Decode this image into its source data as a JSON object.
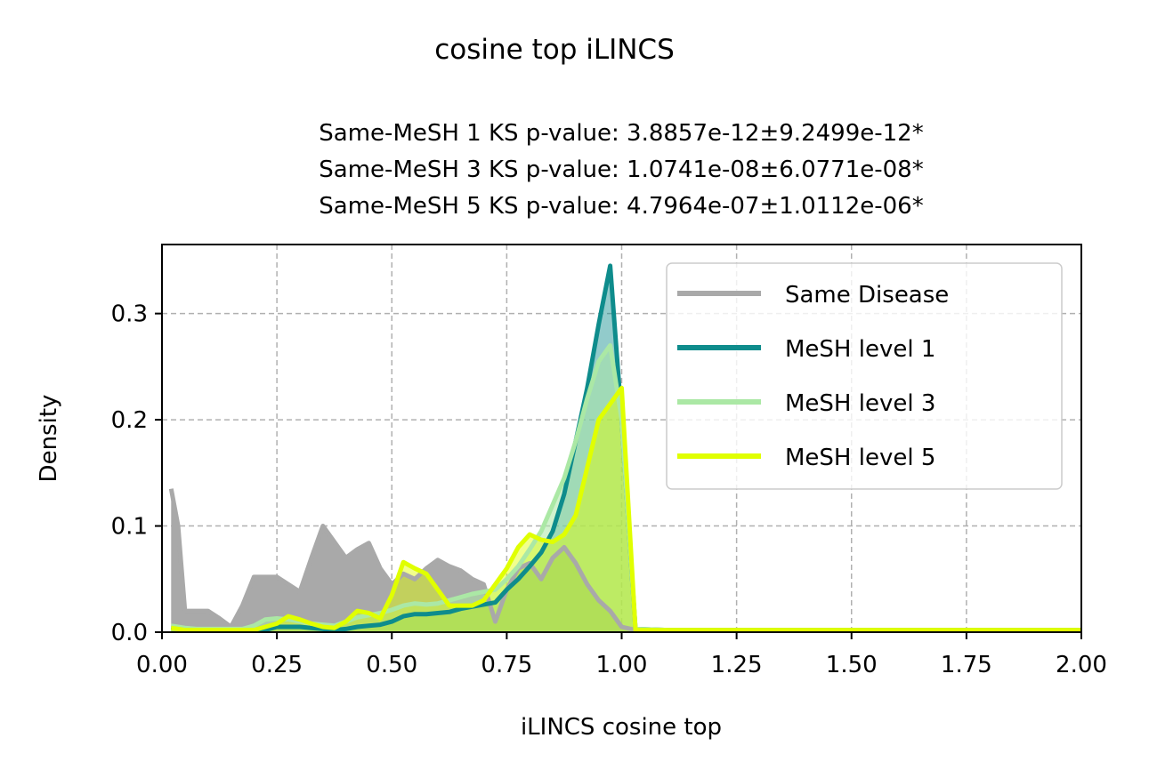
{
  "chart_data": {
    "type": "area",
    "suptitle": "cosine top iLINCS",
    "title_lines": [
      "Same-MeSH 1 KS p-value: 3.8857e-12±9.2499e-12*",
      "Same-MeSH 3 KS p-value: 1.0741e-08±6.0771e-08*",
      "Same-MeSH 5 KS p-value: 4.7964e-07±1.0112e-06*"
    ],
    "xlabel": "iLINCS cosine top",
    "ylabel": "Density",
    "xlim": [
      0,
      2
    ],
    "ylim": [
      0,
      0.365
    ],
    "xticks": [
      0,
      0.25,
      0.5,
      0.75,
      1.0,
      1.25,
      1.5,
      1.75,
      2.0
    ],
    "xtick_labels": [
      "0.00",
      "0.25",
      "0.50",
      "0.75",
      "1.00",
      "1.25",
      "1.50",
      "1.75",
      "2.00"
    ],
    "yticks": [
      0,
      0.1,
      0.2,
      0.3
    ],
    "ytick_labels": [
      "0.0",
      "0.1",
      "0.2",
      "0.3"
    ],
    "grid": true,
    "legend_position": "top-right",
    "x": [
      0.02,
      0.035,
      0.05,
      0.075,
      0.1,
      0.125,
      0.15,
      0.175,
      0.2,
      0.225,
      0.25,
      0.275,
      0.3,
      0.325,
      0.35,
      0.375,
      0.4,
      0.425,
      0.45,
      0.475,
      0.5,
      0.525,
      0.55,
      0.575,
      0.6,
      0.625,
      0.65,
      0.675,
      0.7,
      0.725,
      0.75,
      0.775,
      0.8,
      0.825,
      0.85,
      0.875,
      0.9,
      0.925,
      0.95,
      0.975,
      1.0,
      1.03,
      1.1,
      1.25,
      1.5,
      1.75,
      2.0
    ],
    "series": [
      {
        "name": "Same Disease",
        "color": "#a9a9a9",
        "values": [
          0.135,
          0.1,
          0.02,
          0.02,
          0.02,
          0.013,
          0.005,
          0.025,
          0.052,
          0.052,
          0.052,
          0.045,
          0.038,
          0.07,
          0.1,
          0.085,
          0.07,
          0.078,
          0.084,
          0.06,
          0.045,
          0.055,
          0.05,
          0.06,
          0.068,
          0.062,
          0.058,
          0.05,
          0.045,
          0.01,
          0.04,
          0.06,
          0.065,
          0.05,
          0.07,
          0.08,
          0.065,
          0.045,
          0.03,
          0.02,
          0.005,
          0.002,
          0.002,
          0.002,
          0.002,
          0.002,
          0.002
        ]
      },
      {
        "name": "MeSH level 1",
        "color": "#0e8c8c",
        "values": [
          0.005,
          0.004,
          0.003,
          0.002,
          0.002,
          0.002,
          0.002,
          0.002,
          0.002,
          0.002,
          0.005,
          0.005,
          0.005,
          0.004,
          0.003,
          0.002,
          0.003,
          0.005,
          0.006,
          0.007,
          0.01,
          0.015,
          0.017,
          0.017,
          0.018,
          0.019,
          0.022,
          0.024,
          0.026,
          0.028,
          0.04,
          0.05,
          0.062,
          0.075,
          0.095,
          0.13,
          0.18,
          0.23,
          0.29,
          0.345,
          0.2,
          0.003,
          0.002,
          0.002,
          0.002,
          0.002,
          0.002
        ]
      },
      {
        "name": "MeSH level 3",
        "color": "#abe8a5",
        "values": [
          0.006,
          0.005,
          0.004,
          0.003,
          0.003,
          0.003,
          0.003,
          0.003,
          0.006,
          0.012,
          0.013,
          0.012,
          0.01,
          0.008,
          0.007,
          0.006,
          0.01,
          0.014,
          0.016,
          0.018,
          0.021,
          0.025,
          0.027,
          0.026,
          0.027,
          0.03,
          0.033,
          0.036,
          0.038,
          0.04,
          0.05,
          0.062,
          0.078,
          0.095,
          0.12,
          0.145,
          0.18,
          0.22,
          0.255,
          0.27,
          0.2,
          0.003,
          0.002,
          0.002,
          0.002,
          0.002,
          0.002
        ]
      },
      {
        "name": "MeSH level 5",
        "color": "#e0ff00",
        "values": [
          0.004,
          0.003,
          0.002,
          0.002,
          0.002,
          0.002,
          0.002,
          0.002,
          0.002,
          0.005,
          0.008,
          0.015,
          0.012,
          0.008,
          0.005,
          0.004,
          0.01,
          0.02,
          0.018,
          0.013,
          0.035,
          0.066,
          0.06,
          0.055,
          0.04,
          0.025,
          0.025,
          0.025,
          0.03,
          0.045,
          0.06,
          0.08,
          0.092,
          0.087,
          0.085,
          0.092,
          0.11,
          0.155,
          0.2,
          0.215,
          0.23,
          0.002,
          0.002,
          0.002,
          0.002,
          0.002,
          0.002
        ]
      }
    ]
  }
}
